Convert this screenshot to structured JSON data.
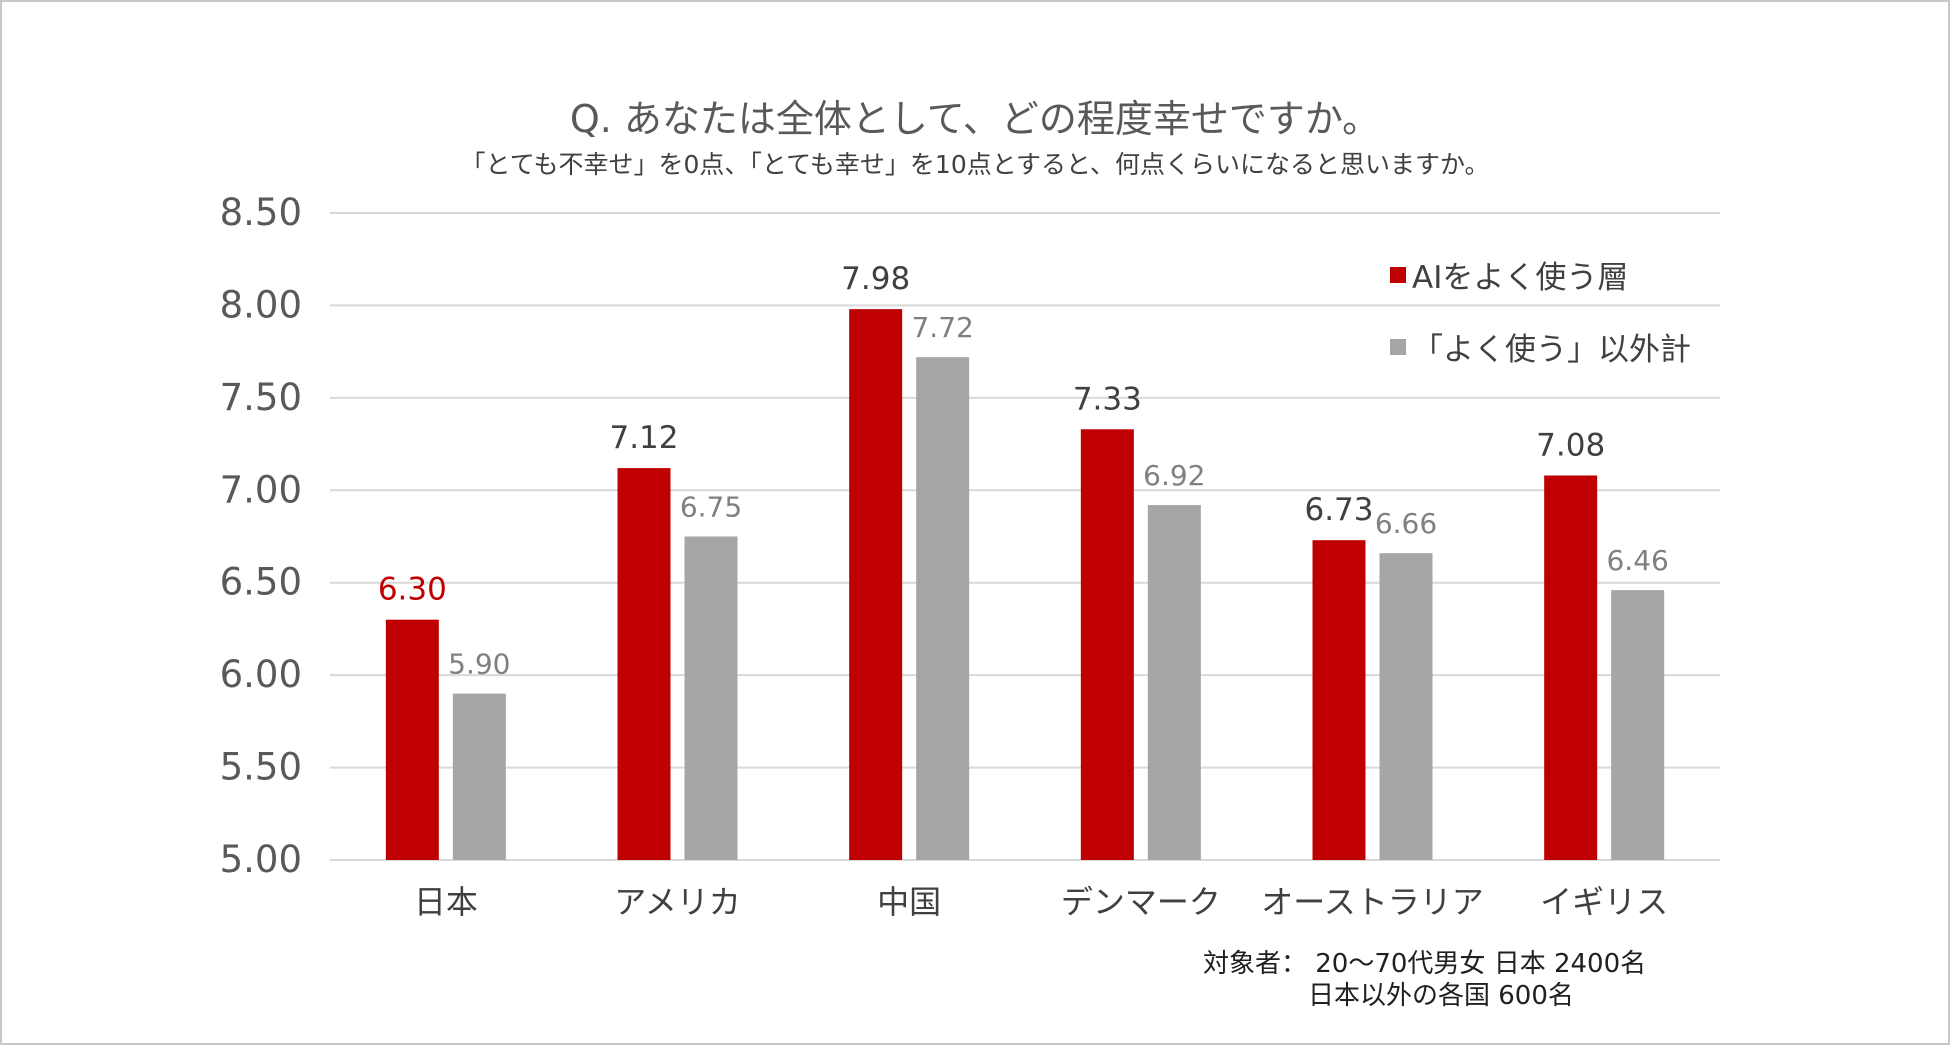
{
  "title": "Q. あなたは全体として、どの程度幸せですか。",
  "subtitle": "「とても不幸せ」を0点、「とても幸せ」を10点とすると、何点くらいになると思いますか。",
  "note": {
    "line1": "対象者： 20～70代男女 日本 2400名",
    "line2": "日本以外の各国 600名"
  },
  "chart_data": {
    "type": "bar",
    "categories": [
      "日本",
      "アメリカ",
      "中国",
      "デンマーク",
      "オーストラリア",
      "イギリス"
    ],
    "series": [
      {
        "name": "AIをよく使う層",
        "values": [
          6.3,
          7.12,
          7.98,
          7.33,
          6.73,
          7.08
        ],
        "color": "#c00000"
      },
      {
        "name": "「よく使う」以外計",
        "values": [
          5.9,
          6.75,
          7.72,
          6.92,
          6.66,
          6.46
        ],
        "color": "#a6a6a6"
      }
    ],
    "data_labels": [
      [
        "6.30",
        "7.12",
        "7.98",
        "7.33",
        "6.73",
        "7.08"
      ],
      [
        "5.90",
        "6.75",
        "7.72",
        "6.92",
        "6.66",
        "6.46"
      ]
    ],
    "data_label_colors": [
      [
        "#c00000",
        "#404040",
        "#404040",
        "#404040",
        "#404040",
        "#404040"
      ],
      [
        "#808080",
        "#808080",
        "#808080",
        "#808080",
        "#808080",
        "#808080"
      ]
    ],
    "yticks": [
      "5.00",
      "5.50",
      "6.00",
      "6.50",
      "7.00",
      "7.50",
      "8.00",
      "8.50"
    ],
    "ylim": [
      5.0,
      8.5
    ],
    "grid": true,
    "legend_position": "top-right"
  }
}
